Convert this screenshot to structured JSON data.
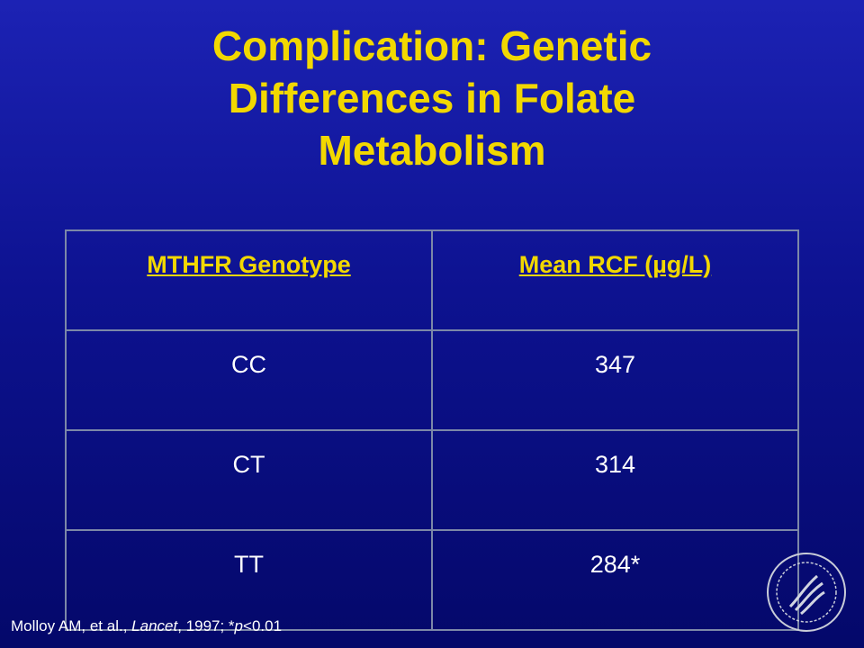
{
  "title": {
    "lines": [
      "Complication: Genetic",
      "Differences in Folate",
      "Metabolism"
    ]
  },
  "table": {
    "header": [
      "MTHFR Genotype",
      "Mean RCF (µg/L)"
    ],
    "rows": [
      [
        "CC",
        "347"
      ],
      [
        "CT",
        "314"
      ],
      [
        "TT",
        "284*"
      ]
    ]
  },
  "footnote": {
    "parts": [
      "Molloy AM, et al., ",
      "Lancet",
      ", 1997; *",
      "p",
      "<0.01"
    ]
  }
}
